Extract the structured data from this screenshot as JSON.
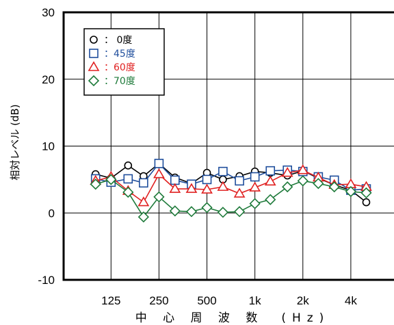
{
  "chart_data": {
    "type": "line",
    "xlabel": "中 心 周 波 数　(Hz)",
    "ylabel": "相対レベル (dB)",
    "ylim": [
      -10,
      30
    ],
    "y_ticks": [
      "30",
      "20",
      "10",
      "0",
      "-10"
    ],
    "x_scale": "log",
    "x_ticks": [
      "125",
      "250",
      "500",
      "1k",
      "2k",
      "4k"
    ],
    "x_tick_values": [
      125,
      250,
      500,
      1000,
      2000,
      4000
    ],
    "xlim": [
      63,
      8000
    ],
    "grid": true,
    "legend_placement": "top-left",
    "x": [
      100,
      125,
      160,
      200,
      250,
      315,
      400,
      500,
      630,
      800,
      1000,
      1250,
      1600,
      2000,
      2500,
      3150,
      4000,
      5000
    ],
    "series": [
      {
        "name": "：  0度",
        "color": "#000000",
        "marker": "circle",
        "values": [
          5.8,
          5.2,
          7.1,
          5.5,
          7.4,
          5.3,
          4.4,
          6.0,
          5.0,
          5.5,
          6.2,
          6.0,
          5.6,
          6.3,
          5.2,
          4.2,
          3.4,
          1.6
        ]
      },
      {
        "name": "：45度",
        "color": "#1f4e9c",
        "marker": "square",
        "values": [
          5.1,
          4.6,
          5.1,
          4.5,
          7.4,
          4.9,
          4.3,
          5.0,
          6.2,
          4.8,
          5.4,
          6.3,
          6.4,
          6.2,
          5.4,
          4.9,
          3.4,
          3.6
        ]
      },
      {
        "name": "：60度",
        "color": "#e02020",
        "marker": "triangle",
        "values": [
          4.8,
          5.4,
          3.3,
          1.6,
          5.8,
          3.6,
          3.6,
          3.5,
          3.9,
          2.9,
          3.8,
          4.7,
          6.0,
          6.4,
          5.3,
          4.2,
          4.3,
          3.9
        ]
      },
      {
        "name": "：70度",
        "color": "#1e7a3a",
        "marker": "diamond",
        "values": [
          4.3,
          5.0,
          3.1,
          -0.6,
          2.4,
          0.3,
          0.2,
          0.8,
          0.1,
          0.2,
          1.4,
          2.0,
          3.9,
          4.8,
          4.4,
          3.9,
          3.2,
          3.0
        ]
      }
    ]
  }
}
